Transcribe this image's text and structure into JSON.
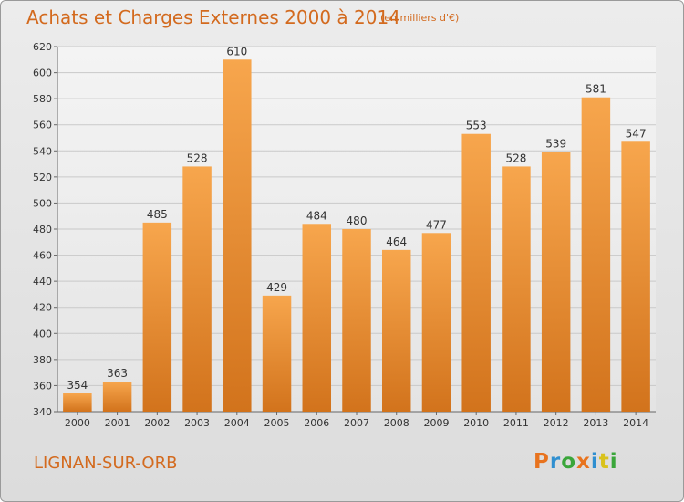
{
  "header": {
    "title": "Achats et Charges Externes 2000 à 2014",
    "subtitle": "(en milliers d'€)"
  },
  "footer": {
    "place": "LIGNAN-SUR-ORB",
    "brand": "Proxiti",
    "brand_colors": [
      "#e8731e",
      "#2f8fd0",
      "#3aa63a",
      "#e8731e",
      "#2f8fd0",
      "#d9c21c",
      "#3aa63a"
    ]
  },
  "colors": {
    "bar_light": "#f7a64d",
    "bar_dark": "#d2731c",
    "accent": "#d36a1e"
  },
  "chart_data": {
    "type": "bar",
    "title": "Achats et Charges Externes 2000 à 2014",
    "subtitle": "(en milliers d'€)",
    "xlabel": "",
    "ylabel": "",
    "categories": [
      "2000",
      "2001",
      "2002",
      "2003",
      "2004",
      "2005",
      "2006",
      "2007",
      "2008",
      "2009",
      "2010",
      "2011",
      "2012",
      "2013",
      "2014"
    ],
    "values": [
      354,
      363,
      485,
      528,
      610,
      429,
      484,
      480,
      464,
      477,
      553,
      528,
      539,
      581,
      547
    ],
    "ylim": [
      340,
      620
    ],
    "yticks": [
      340,
      360,
      380,
      400,
      420,
      440,
      460,
      480,
      500,
      520,
      540,
      560,
      580,
      600,
      620
    ],
    "grid": true,
    "legend": "none"
  }
}
